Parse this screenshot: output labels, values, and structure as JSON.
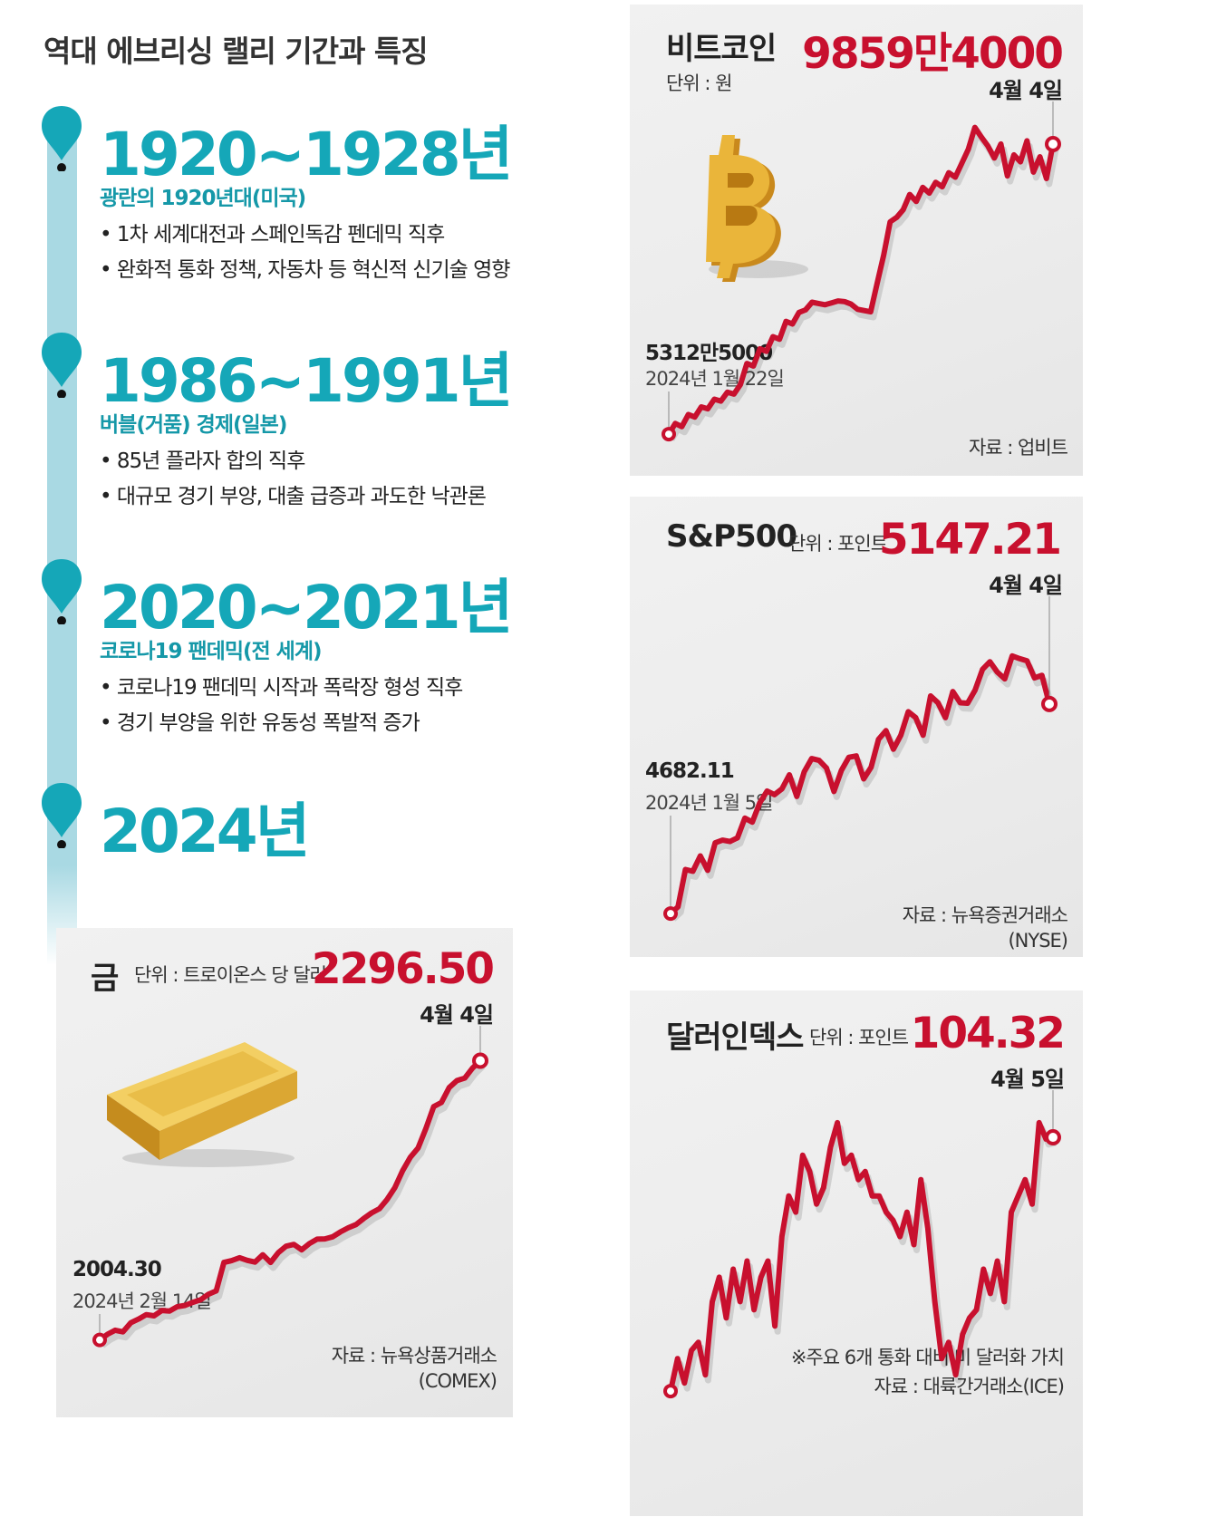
{
  "title": "역대 에브리싱 랠리 기간과 특징",
  "eras": [
    {
      "years": "1920~1928년",
      "subtitle": "광란의 1920년대(미국)",
      "bullets": [
        "1차 세계대전과 스페인독감 펜데믹 직후",
        "완화적 통화 정책, 자동차 등 혁신적 신기술 영향"
      ]
    },
    {
      "years": "1986~1991년",
      "subtitle": "버블(거품) 경제(일본)",
      "bullets": [
        "85년 플라자 합의 직후",
        "대규모 경기 부양, 대출 급증과 과도한 낙관론"
      ]
    },
    {
      "years": "2020~2021년",
      "subtitle": "코로나19 팬데믹(전 세계)",
      "bullets": [
        "코로나19 팬데믹 시작과 폭락장 형성 직후",
        "경기 부양을 위한 유동성 폭발적 증가"
      ]
    },
    {
      "years": "2024년",
      "subtitle": "",
      "bullets": []
    }
  ],
  "colors": {
    "teal": "#15a7b8",
    "timeline": "#a9d9e3",
    "red": "#c8102e"
  },
  "chart_data": [
    {
      "type": "line",
      "title": "비트코인",
      "unit": "단위 : 원",
      "latest_value": "9859만4000",
      "latest_date": "4월 4일",
      "start_value": "5312만5000",
      "start_date": "2024년 1월 22일",
      "source": "자료 : 업비트",
      "icon": "bitcoin-icon",
      "ylim": [
        52000000,
        102000000
      ],
      "values": [
        53125000,
        54800000,
        54300000,
        56200000,
        55800000,
        57400000,
        57100000,
        58600000,
        58300000,
        59700000,
        59400000,
        60900000,
        64200000,
        63800000,
        66500000,
        66100000,
        68400000,
        68000000,
        70800000,
        70400000,
        72200000,
        72600000,
        73800000,
        73600000,
        73400000,
        73700000,
        74000000,
        73900000,
        73500000,
        72700000,
        72500000,
        72300000,
        76800000,
        81200000,
        86400000,
        87100000,
        88300000,
        90700000,
        89600000,
        91800000,
        90900000,
        92600000,
        91900000,
        94100000,
        93400000,
        95600000,
        97800000,
        101200000,
        99700000,
        98300000,
        96400000,
        98600000,
        93600000,
        96900000,
        95800000,
        99100000,
        94200000,
        96600000,
        93200000,
        98594000
      ]
    },
    {
      "type": "line",
      "title": "S&P500",
      "unit": "단위 : 포인트",
      "latest_value": "5147.21",
      "latest_date": "4월 4일",
      "start_value": "4682.11",
      "start_date": "2024년 1월 5일",
      "source": "자료 : 뉴욕증권거래소\n(NYSE)",
      "ylim": [
        4620,
        5330
      ],
      "values": [
        4682.11,
        4697,
        4780,
        4776,
        4810,
        4778,
        4839,
        4845,
        4842,
        4850,
        4894,
        4885,
        4928,
        4954,
        4946,
        4959,
        4990,
        4942,
        4997,
        5026,
        5022,
        5005,
        4953,
        5000,
        5029,
        5032,
        4981,
        5007,
        5069,
        5088,
        5047,
        5078,
        5130,
        5117,
        5078,
        5165,
        5150,
        5117,
        5175,
        5150,
        5149,
        5178,
        5224,
        5241,
        5218,
        5203,
        5254,
        5248,
        5243,
        5205,
        5211,
        5147.21
      ]
    },
    {
      "type": "line",
      "title": "금",
      "unit": "단위 : 트로이온스 당 달러",
      "latest_value": "2296.50",
      "latest_date": "4월 4일",
      "start_value": "2004.30",
      "start_date": "2024년 2월 14일",
      "source": "자료 : 뉴욕상품거래소\n(COMEX)",
      "icon": "gold-bar-icon",
      "ylim": [
        1985,
        2315
      ],
      "values": [
        2004.3,
        2010.2,
        2014.5,
        2012.8,
        2022.3,
        2026.2,
        2030.8,
        2029.6,
        2035.2,
        2034.6,
        2039.1,
        2040.5,
        2043.7,
        2046.4,
        2052.1,
        2055.6,
        2085.4,
        2087.3,
        2090.4,
        2087.6,
        2085.8,
        2093.5,
        2085.4,
        2095.7,
        2102.4,
        2104.3,
        2098.6,
        2105.1,
        2109.8,
        2110.1,
        2112.3,
        2117.4,
        2121.6,
        2125.1,
        2131.4,
        2137.2,
        2141.6,
        2151.2,
        2163.7,
        2181.4,
        2195.6,
        2205.2,
        2225.6,
        2248.5,
        2252.8,
        2268.4,
        2275.7,
        2278.3,
        2288.7,
        2296.5
      ]
    },
    {
      "type": "line",
      "title": "달러인덱스",
      "unit": "단위 : 포인트",
      "latest_value": "104.32",
      "latest_date": "4월 5일",
      "note": "※주요 6개 통화 대비 미 달러화 가치",
      "source": "자료 : 대륙간거래소(ICE)",
      "ylim": [
        100.9,
        104.9
      ],
      "values": [
        101.2,
        101.6,
        101.3,
        101.7,
        101.8,
        101.4,
        102.3,
        102.6,
        102.1,
        102.7,
        102.3,
        102.8,
        102.2,
        102.6,
        102.8,
        102.0,
        103.1,
        103.6,
        103.4,
        104.1,
        103.9,
        103.5,
        103.7,
        104.2,
        104.5,
        104.0,
        104.1,
        103.8,
        103.9,
        103.6,
        103.6,
        103.4,
        103.3,
        103.1,
        103.4,
        103.0,
        103.8,
        103.2,
        102.3,
        101.6,
        101.8,
        101.4,
        101.9,
        102.1,
        102.2,
        102.7,
        102.4,
        102.8,
        102.3,
        103.4,
        103.6,
        103.8,
        103.5,
        104.5,
        104.3,
        104.32
      ]
    }
  ]
}
